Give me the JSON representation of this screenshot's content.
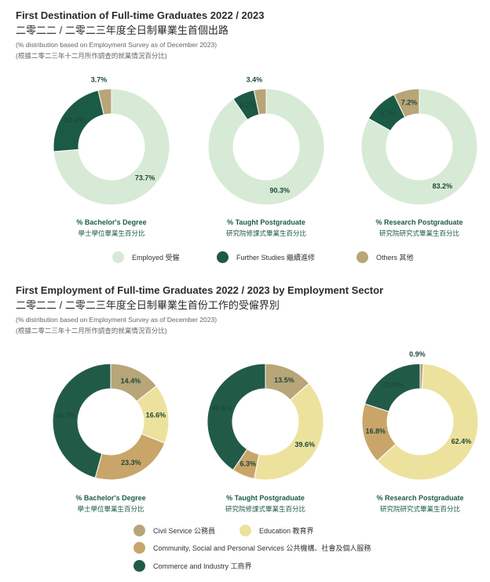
{
  "colors": {
    "employed": "#d7ead6",
    "further_studies": "#1b5a44",
    "others": "#b8a578",
    "civil_service": "#b8a578",
    "education": "#ede29d",
    "community": "#c9a56a",
    "commerce": "#225a48"
  },
  "section1": {
    "title": "First Destination of Full-time Graduates 2022 / 2023",
    "title_zh": "二零二二 / 二零二三年度全日制畢業生首個出路",
    "note": "(% distribution based on Employment Survey as of December 2023)",
    "note_zh": "(根據二零二三年十二月所作調查的就業情況百分比)",
    "legend": [
      {
        "label": "Employed 受僱",
        "color_key": "employed"
      },
      {
        "label": "Further Studies 繼續進修",
        "color_key": "further_studies"
      },
      {
        "label": "Others 其他",
        "color_key": "others"
      }
    ]
  },
  "section2": {
    "title": "First Employment of Full-time Graduates 2022 / 2023 by Employment Sector",
    "title_zh": "二零二二 / 二零二三年度全日制畢業生首份工作的受僱界別",
    "note": "(% distribution based on Employment Survey as of December 2023)",
    "note_zh": "(根據二零二三年十二月所作調查的就業情況百分比)",
    "legend": [
      {
        "label": "Civil Service 公務員",
        "color_key": "civil_service"
      },
      {
        "label": "Education 教育界",
        "color_key": "education"
      },
      {
        "label": "Community, Social and Personal Services 公共機構、社會及個人服務",
        "color_key": "community"
      },
      {
        "label": "Commerce and Industry 工商界",
        "color_key": "commerce"
      }
    ]
  },
  "chart_data": [
    {
      "type": "pie",
      "title": "% Bachelor's Degree",
      "title_zh": "學士學位畢業生百分比",
      "slices": [
        {
          "name": "Employed",
          "value": 73.7,
          "label": "73.7%",
          "color_key": "employed"
        },
        {
          "name": "Further Studies",
          "value": 22.6,
          "label": "22.6%",
          "color_key": "further_studies"
        },
        {
          "name": "Others",
          "value": 3.7,
          "label": "3.7%",
          "color_key": "others"
        }
      ]
    },
    {
      "type": "pie",
      "title": "% Taught Postgraduate",
      "title_zh": "研究院修課式畢業生百分比",
      "slices": [
        {
          "name": "Employed",
          "value": 90.3,
          "label": "90.3%",
          "color_key": "employed"
        },
        {
          "name": "Further Studies",
          "value": 6.2,
          "label": "6.2%",
          "color_key": "further_studies"
        },
        {
          "name": "Others",
          "value": 3.4,
          "label": "3.4%",
          "color_key": "others"
        }
      ]
    },
    {
      "type": "pie",
      "title": "% Research Postgraduate",
      "title_zh": "研究院研究式畢業生百分比",
      "slices": [
        {
          "name": "Employed",
          "value": 83.2,
          "label": "83.2%",
          "color_key": "employed"
        },
        {
          "name": "Further Studies",
          "value": 9.7,
          "label": "9.7%",
          "color_key": "further_studies"
        },
        {
          "name": "Others",
          "value": 7.2,
          "label": "7.2%",
          "color_key": "others"
        }
      ]
    },
    {
      "type": "pie",
      "title": "% Bachelor's Degree",
      "title_zh": "學士學位畢業生百分比",
      "slices": [
        {
          "name": "Civil Service",
          "value": 14.4,
          "label": "14.4%",
          "color_key": "civil_service"
        },
        {
          "name": "Education",
          "value": 16.6,
          "label": "16.6%",
          "color_key": "education"
        },
        {
          "name": "Community, Social and Personal Services",
          "value": 23.3,
          "label": "23.3%",
          "color_key": "community"
        },
        {
          "name": "Commerce and Industry",
          "value": 45.7,
          "label": "45.7%",
          "color_key": "commerce"
        }
      ]
    },
    {
      "type": "pie",
      "title": "% Taught Postgraduate",
      "title_zh": "研究院修課式畢業生百分比",
      "slices": [
        {
          "name": "Civil Service",
          "value": 13.5,
          "label": "13.5%",
          "color_key": "civil_service"
        },
        {
          "name": "Education",
          "value": 39.6,
          "label": "39.6%",
          "color_key": "education"
        },
        {
          "name": "Community, Social and Personal Services",
          "value": 6.3,
          "label": "6.3%",
          "color_key": "community"
        },
        {
          "name": "Commerce and Industry",
          "value": 40.6,
          "label": "40.6%",
          "color_key": "commerce"
        }
      ]
    },
    {
      "type": "pie",
      "title": "% Research Postgraduate",
      "title_zh": "研究院研究式畢業生百分比",
      "slices": [
        {
          "name": "Civil Service",
          "value": 0.9,
          "label": "0.9%",
          "color_key": "civil_service"
        },
        {
          "name": "Education",
          "value": 62.4,
          "label": "62.4%",
          "color_key": "education"
        },
        {
          "name": "Community, Social and Personal Services",
          "value": 16.8,
          "label": "16.8%",
          "color_key": "community"
        },
        {
          "name": "Commerce and Industry",
          "value": 20.0,
          "label": "20.0%",
          "color_key": "commerce"
        }
      ]
    }
  ]
}
